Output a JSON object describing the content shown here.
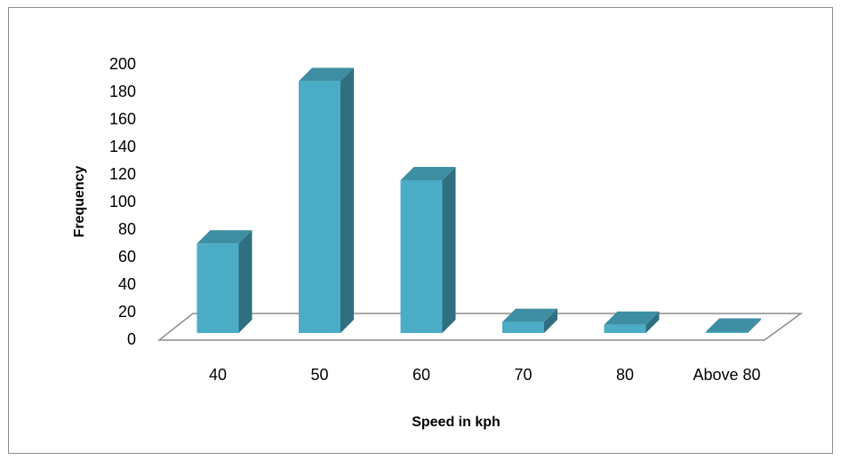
{
  "chart_data": {
    "type": "bar",
    "title": "",
    "xlabel": "Speed in kph",
    "ylabel": "Frequency",
    "categories": [
      "40",
      "50",
      "60",
      "70",
      "80",
      "Above 80"
    ],
    "values": [
      65,
      183,
      111,
      8,
      6,
      1
    ],
    "ylim": [
      0,
      200
    ],
    "yticks": [
      "0",
      "20",
      "40",
      "60",
      "80",
      "100",
      "120",
      "140",
      "160",
      "180",
      "200"
    ],
    "grid": false,
    "legend": "none",
    "colors": {
      "front": "#4bacc6",
      "side": "#2f6f80",
      "top": "#3d8ea3",
      "floor_stroke": "#8c8c8c"
    }
  }
}
